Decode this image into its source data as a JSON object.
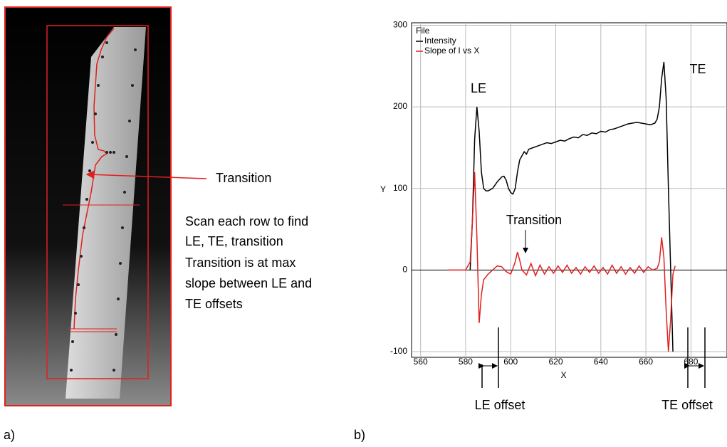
{
  "figure": {
    "panel_labels": [
      "a)",
      "b)"
    ],
    "notes": [
      "Transition",
      "Scan each row to find",
      "LE, TE, transition",
      "Transition is at max",
      "slope between LE and",
      "TE offsets"
    ]
  },
  "chart_data": {
    "type": "line",
    "x_label": "X",
    "y_label": "Y",
    "xlim": [
      556,
      696
    ],
    "xticks": [
      560,
      580,
      600,
      620,
      640,
      660,
      680
    ],
    "ylim": [
      -107,
      303
    ],
    "yticks": [
      -100,
      0,
      100,
      200,
      300
    ],
    "grid": true,
    "legend": "upper left",
    "legend_title": "File",
    "annotations": [
      "LE",
      "TE",
      "Transition",
      "LE offset",
      "TE offset"
    ],
    "series": [
      {
        "name": "Intensity",
        "color": "#000000",
        "x": [
          582,
          583,
          584,
          585,
          586,
          587,
          588,
          589,
          590,
          592,
          594,
          596,
          597,
          598,
          599,
          600,
          601,
          602,
          603,
          604,
          605,
          606,
          607,
          608,
          610,
          612,
          614,
          616,
          618,
          620,
          622,
          624,
          626,
          628,
          630,
          632,
          634,
          636,
          638,
          640,
          642,
          644,
          646,
          648,
          650,
          652,
          654,
          656,
          658,
          660,
          662,
          664,
          665,
          666,
          667,
          668,
          669,
          670,
          671,
          672
        ],
        "values": [
          0,
          60,
          160,
          200,
          170,
          120,
          100,
          97,
          97,
          100,
          108,
          114,
          115,
          110,
          100,
          95,
          93,
          100,
          120,
          135,
          140,
          145,
          142,
          148,
          150,
          152,
          154,
          156,
          155,
          157,
          159,
          158,
          161,
          163,
          162,
          166,
          165,
          168,
          167,
          170,
          169,
          172,
          173,
          175,
          177,
          179,
          180,
          181,
          180,
          179,
          178,
          180,
          185,
          200,
          235,
          255,
          210,
          100,
          0,
          -100
        ]
      },
      {
        "name": "Slope of I vs X",
        "color": "#e02020",
        "x": [
          572,
          576,
          580,
          582,
          583,
          584,
          585,
          586,
          587,
          588,
          590,
          592,
          594,
          596,
          598,
          600,
          601,
          602,
          603,
          604,
          605,
          607,
          609,
          611,
          613,
          615,
          617,
          619,
          621,
          623,
          625,
          627,
          629,
          631,
          633,
          635,
          637,
          639,
          641,
          643,
          645,
          647,
          649,
          651,
          653,
          655,
          657,
          659,
          661,
          663,
          665,
          666,
          667,
          668,
          669,
          670,
          671,
          672,
          673
        ],
        "values": [
          0,
          0,
          0,
          10,
          60,
          120,
          40,
          -65,
          -30,
          -12,
          -5,
          0,
          5,
          4,
          -2,
          -5,
          2,
          10,
          22,
          12,
          0,
          -6,
          8,
          -7,
          6,
          -5,
          4,
          -4,
          5,
          -3,
          6,
          -4,
          3,
          -5,
          4,
          -3,
          5,
          -4,
          3,
          -5,
          6,
          -4,
          4,
          -5,
          3,
          -4,
          5,
          -3,
          4,
          0,
          2,
          10,
          40,
          15,
          -50,
          -100,
          -60,
          -5,
          5
        ]
      }
    ]
  }
}
